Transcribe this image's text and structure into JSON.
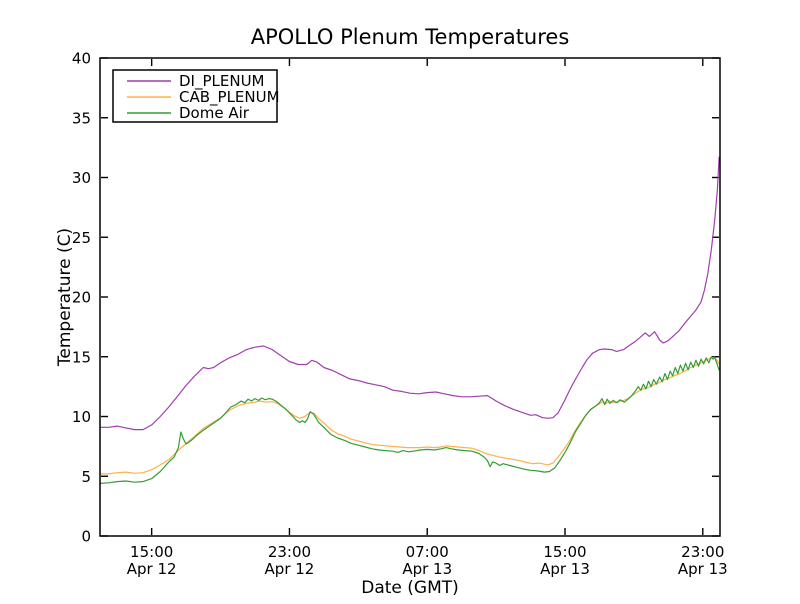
{
  "chart_data": {
    "type": "line",
    "title": "APOLLO Plenum Temperatures",
    "xlabel": "Date (GMT)",
    "ylabel": "Temperature (C)",
    "ylim": [
      0,
      40
    ],
    "yticks": [
      0,
      5,
      10,
      15,
      20,
      25,
      30,
      35,
      40
    ],
    "xlim_hours": [
      0,
      36
    ],
    "x_unit": "hours since Apr 12 12:00 GMT",
    "grid": false,
    "tick_direction": "in",
    "legend_position": "upper left",
    "xticks": [
      {
        "hours": 3,
        "time": "15:00",
        "date": "Apr 12"
      },
      {
        "hours": 11,
        "time": "23:00",
        "date": "Apr 12"
      },
      {
        "hours": 19,
        "time": "07:00",
        "date": "Apr 13"
      },
      {
        "hours": 27,
        "time": "15:00",
        "date": "Apr 13"
      },
      {
        "hours": 35,
        "time": "23:00",
        "date": "Apr 13"
      }
    ],
    "series": [
      {
        "name": "DI_PLENUM",
        "color": "#9f3fad",
        "t": [
          0,
          0.5,
          1,
          1.5,
          2,
          2.5,
          3,
          3.5,
          4,
          4.5,
          5,
          5.5,
          6,
          6.3,
          6.6,
          7,
          7.5,
          8,
          8.5,
          9,
          9.5,
          10,
          10.5,
          11,
          11.5,
          12,
          12.3,
          12.6,
          13,
          13.5,
          14,
          14.5,
          15,
          15.5,
          16,
          16.5,
          17,
          17.5,
          18,
          18.5,
          19,
          19.5,
          20,
          20.5,
          21,
          21.5,
          22,
          22.5,
          23,
          23.5,
          24,
          24.5,
          25,
          25.3,
          25.7,
          26,
          26.3,
          26.6,
          27,
          27.3,
          27.6,
          28,
          28.3,
          28.6,
          29,
          29.3,
          29.7,
          30,
          30.4,
          30.8,
          31.1,
          31.35,
          31.65,
          31.9,
          32.2,
          32.5,
          32.7,
          33,
          33.3,
          33.6,
          33.9,
          34.3,
          34.6,
          34.9,
          35.1,
          35.3,
          35.5,
          35.7,
          35.85,
          35.95
        ],
        "v": [
          9.1,
          9.1,
          9.2,
          9.05,
          8.9,
          8.9,
          9.3,
          10.0,
          10.8,
          11.7,
          12.6,
          13.4,
          14.1,
          14.0,
          14.1,
          14.5,
          14.9,
          15.2,
          15.6,
          15.8,
          15.9,
          15.6,
          15.1,
          14.6,
          14.35,
          14.35,
          14.7,
          14.55,
          14.1,
          13.85,
          13.5,
          13.15,
          13.0,
          12.8,
          12.65,
          12.5,
          12.2,
          12.1,
          11.95,
          11.9,
          12.0,
          12.05,
          11.9,
          11.75,
          11.65,
          11.65,
          11.7,
          11.75,
          11.3,
          10.9,
          10.6,
          10.35,
          10.1,
          10.15,
          9.9,
          9.85,
          9.9,
          10.3,
          11.4,
          12.3,
          13.1,
          14.1,
          14.8,
          15.3,
          15.6,
          15.65,
          15.6,
          15.45,
          15.6,
          16.0,
          16.3,
          16.6,
          17.0,
          16.7,
          17.1,
          16.4,
          16.15,
          16.35,
          16.75,
          17.15,
          17.7,
          18.4,
          18.9,
          19.6,
          20.6,
          22.0,
          24.0,
          26.5,
          29.0,
          31.7
        ]
      },
      {
        "name": "CAB_PLENUM",
        "color": "#ffb04a",
        "t": [
          0,
          0.5,
          1,
          1.5,
          2,
          2.5,
          3,
          3.5,
          4,
          4.5,
          5,
          5.5,
          6,
          6.5,
          7,
          7.5,
          8,
          8.5,
          9,
          9.3,
          9.6,
          10,
          10.3,
          10.7,
          11,
          11.3,
          11.6,
          11.9,
          12.2,
          12.45,
          12.7,
          13,
          13.4,
          13.8,
          14.2,
          14.6,
          15,
          15.4,
          15.8,
          16.2,
          16.6,
          17,
          17.4,
          17.8,
          18.2,
          18.6,
          19,
          19.4,
          19.8,
          20.1,
          20.4,
          20.8,
          21.2,
          21.6,
          22,
          22.4,
          22.8,
          23.2,
          23.6,
          24,
          24.4,
          24.8,
          25.1,
          25.5,
          26,
          26.3,
          26.6,
          26.9,
          27.2,
          27.5,
          27.8,
          28.1,
          28.4,
          28.7,
          29,
          29.2,
          29.4,
          29.6,
          29.8,
          30.1,
          30.4,
          30.7,
          31,
          31.3,
          31.6,
          31.9,
          32.2,
          32.5,
          32.8,
          33.1,
          33.4,
          33.7,
          34,
          34.3,
          34.6,
          34.9,
          35.2,
          35.45,
          35.65,
          35.8,
          35.95
        ],
        "v": [
          5.2,
          5.2,
          5.3,
          5.35,
          5.25,
          5.3,
          5.55,
          5.95,
          6.4,
          7.1,
          7.75,
          8.35,
          9.0,
          9.45,
          9.9,
          10.5,
          10.9,
          11.1,
          11.2,
          11.3,
          11.2,
          11.25,
          11.1,
          10.7,
          10.35,
          10.05,
          9.85,
          10.0,
          10.35,
          10.25,
          9.8,
          9.45,
          8.9,
          8.55,
          8.35,
          8.1,
          7.95,
          7.8,
          7.65,
          7.6,
          7.55,
          7.5,
          7.45,
          7.4,
          7.4,
          7.4,
          7.45,
          7.4,
          7.45,
          7.55,
          7.5,
          7.45,
          7.4,
          7.35,
          7.15,
          6.9,
          6.75,
          6.6,
          6.5,
          6.4,
          6.3,
          6.15,
          6.05,
          6.1,
          5.95,
          6.1,
          6.6,
          7.2,
          7.8,
          8.6,
          9.3,
          9.9,
          10.45,
          10.8,
          11.05,
          11.25,
          11.1,
          11.3,
          11.15,
          11.25,
          11.35,
          11.55,
          11.85,
          12.15,
          12.35,
          12.45,
          12.7,
          12.85,
          13.1,
          13.25,
          13.45,
          13.6,
          13.85,
          14.1,
          14.3,
          14.5,
          14.7,
          14.9,
          14.95,
          14.75,
          14.4
        ]
      },
      {
        "name": "Dome Air",
        "color": "#359c35",
        "t": [
          0,
          0.5,
          1,
          1.5,
          2,
          2.5,
          3,
          3.5,
          4,
          4.3,
          4.55,
          4.7,
          4.85,
          5,
          5.3,
          5.6,
          6,
          6.5,
          7,
          7.3,
          7.6,
          7.9,
          8.2,
          8.4,
          8.6,
          8.8,
          9,
          9.2,
          9.4,
          9.6,
          9.8,
          10,
          10.2,
          10.5,
          10.8,
          11.1,
          11.4,
          11.6,
          11.75,
          11.9,
          12.05,
          12.2,
          12.4,
          12.7,
          13,
          13.4,
          13.8,
          14.2,
          14.6,
          15,
          15.4,
          15.8,
          16.2,
          16.6,
          17,
          17.3,
          17.6,
          17.9,
          18.2,
          18.6,
          19,
          19.4,
          19.8,
          20.1,
          20.4,
          20.8,
          21.2,
          21.6,
          22,
          22.3,
          22.5,
          22.65,
          22.8,
          23,
          23.2,
          23.4,
          23.8,
          24.2,
          24.6,
          25,
          25.4,
          25.8,
          26.1,
          26.4,
          26.7,
          27,
          27.3,
          27.6,
          27.9,
          28.2,
          28.5,
          28.8,
          29,
          29.15,
          29.3,
          29.45,
          29.6,
          29.8,
          30,
          30.2,
          30.45,
          30.7,
          30.9,
          31.1,
          31.25,
          31.4,
          31.55,
          31.7,
          31.85,
          32,
          32.15,
          32.3,
          32.5,
          32.65,
          32.8,
          32.95,
          33.1,
          33.25,
          33.4,
          33.55,
          33.7,
          33.85,
          34,
          34.15,
          34.3,
          34.45,
          34.6,
          34.75,
          34.9,
          35.05,
          35.2,
          35.35,
          35.5,
          35.6,
          35.7,
          35.8,
          35.95
        ],
        "v": [
          4.4,
          4.45,
          4.55,
          4.6,
          4.5,
          4.55,
          4.8,
          5.4,
          6.2,
          6.6,
          7.4,
          8.7,
          8.1,
          7.7,
          8.0,
          8.4,
          8.85,
          9.35,
          9.85,
          10.3,
          10.8,
          11.0,
          11.3,
          11.15,
          11.45,
          11.3,
          11.5,
          11.35,
          11.55,
          11.4,
          11.5,
          11.45,
          11.3,
          10.95,
          10.6,
          10.15,
          9.7,
          9.5,
          9.65,
          9.5,
          9.8,
          10.4,
          10.2,
          9.5,
          9.1,
          8.5,
          8.2,
          8.0,
          7.75,
          7.6,
          7.45,
          7.3,
          7.2,
          7.15,
          7.1,
          7.0,
          7.15,
          7.05,
          7.1,
          7.2,
          7.25,
          7.2,
          7.3,
          7.4,
          7.3,
          7.2,
          7.15,
          7.1,
          6.9,
          6.6,
          6.3,
          5.8,
          6.2,
          6.1,
          5.9,
          6.05,
          5.9,
          5.75,
          5.6,
          5.5,
          5.45,
          5.35,
          5.4,
          5.7,
          6.3,
          7.0,
          7.8,
          8.7,
          9.4,
          10.1,
          10.6,
          10.9,
          11.15,
          11.5,
          11.0,
          11.45,
          11.1,
          11.35,
          11.15,
          11.4,
          11.2,
          11.5,
          11.8,
          12.15,
          12.5,
          12.2,
          12.7,
          12.3,
          12.95,
          12.5,
          13.1,
          12.7,
          13.3,
          12.9,
          13.6,
          13.1,
          13.8,
          13.4,
          14.1,
          13.6,
          14.3,
          13.8,
          14.45,
          13.9,
          14.55,
          14.1,
          14.7,
          14.2,
          14.8,
          14.4,
          14.9,
          14.5,
          15.0,
          14.8,
          14.95,
          14.5,
          13.9
        ]
      }
    ]
  }
}
